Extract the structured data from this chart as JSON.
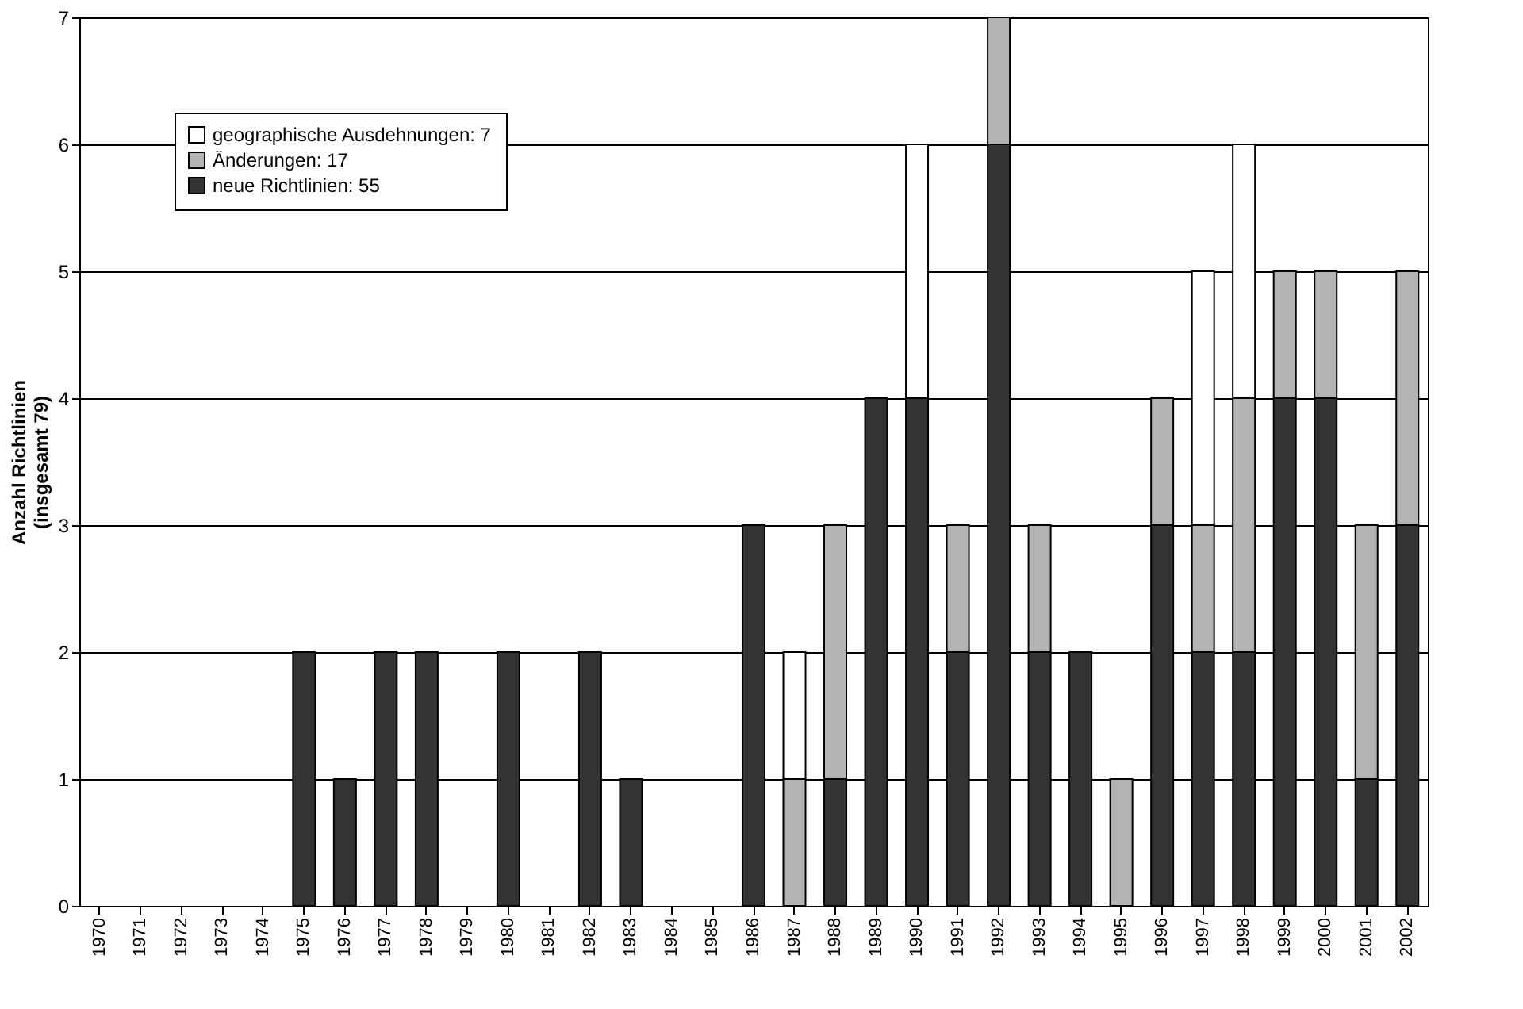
{
  "chart_data": {
    "type": "bar",
    "stacked": true,
    "ylabel": "Anzahl Richtlinien\n(insgesamt 79)",
    "categories": [
      "1970",
      "1971",
      "1972",
      "1973",
      "1974",
      "1975",
      "1976",
      "1977",
      "1978",
      "1979",
      "1980",
      "1981",
      "1982",
      "1983",
      "1984",
      "1985",
      "1986",
      "1987",
      "1988",
      "1989",
      "1990",
      "1991",
      "1992",
      "1993",
      "1994",
      "1995",
      "1996",
      "1997",
      "1998",
      "1999",
      "2000",
      "2001",
      "2002"
    ],
    "series": [
      {
        "name": "neue Richtlinien: 55",
        "color": "#333333",
        "values": [
          0,
          0,
          0,
          0,
          0,
          2,
          1,
          2,
          2,
          0,
          2,
          0,
          2,
          1,
          0,
          0,
          3,
          0,
          1,
          4,
          4,
          2,
          6,
          2,
          2,
          0,
          3,
          2,
          2,
          4,
          4,
          1,
          3
        ]
      },
      {
        "name": "Änderungen: 17",
        "color": "#b3b3b3",
        "values": [
          0,
          0,
          0,
          0,
          0,
          0,
          0,
          0,
          0,
          0,
          0,
          0,
          0,
          0,
          0,
          0,
          0,
          1,
          2,
          0,
          0,
          1,
          1,
          1,
          0,
          1,
          1,
          1,
          2,
          1,
          1,
          2,
          2
        ]
      },
      {
        "name": "geographische Ausdehnungen: 7",
        "color": "#ffffff",
        "values": [
          0,
          0,
          0,
          0,
          0,
          0,
          0,
          0,
          0,
          0,
          0,
          0,
          0,
          0,
          0,
          0,
          0,
          1,
          0,
          0,
          2,
          0,
          0,
          0,
          0,
          0,
          0,
          2,
          2,
          0,
          0,
          0,
          0
        ]
      }
    ],
    "ylim": [
      0,
      7
    ],
    "yticks": [
      0,
      1,
      2,
      3,
      4,
      5,
      6,
      7
    ],
    "grid": "y",
    "legend": "top left"
  }
}
